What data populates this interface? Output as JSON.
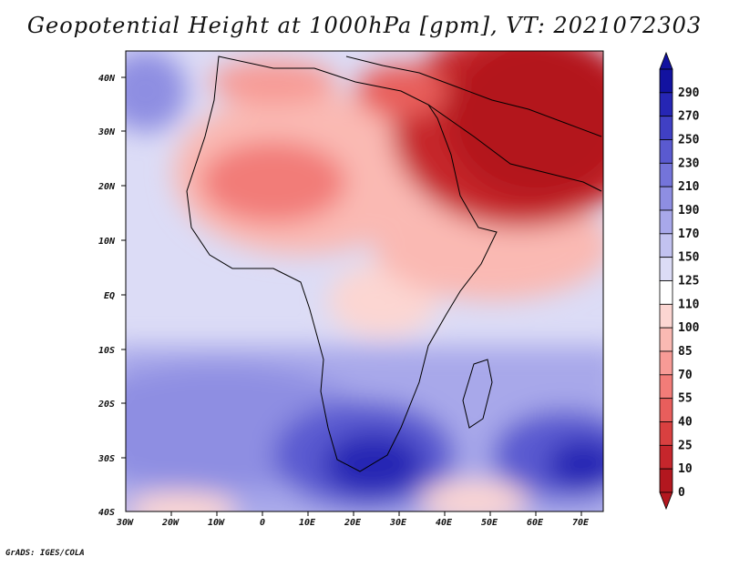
{
  "title": "Geopotential Height at 1000hPa [gpm], VT: 2021072303",
  "credit": "GrADS: IGES/COLA",
  "map": {
    "lat_labels": [
      "40N",
      "30N",
      "20N",
      "10N",
      "EQ",
      "10S",
      "20S",
      "30S",
      "40S"
    ],
    "lon_labels": [
      "30W",
      "20W",
      "10W",
      "0",
      "10E",
      "20E",
      "30E",
      "40E",
      "50E",
      "60E",
      "70E"
    ]
  },
  "colorbar": {
    "levels": [
      "0",
      "10",
      "25",
      "40",
      "55",
      "70",
      "85",
      "100",
      "110",
      "125",
      "150",
      "170",
      "190",
      "210",
      "230",
      "250",
      "270",
      "290"
    ],
    "colors": [
      "#b3171f",
      "#c6262c",
      "#d94040",
      "#e85e5c",
      "#f27c78",
      "#f79b96",
      "#fab9b3",
      "#fcd6d2",
      "#ffffff",
      "#dcdcf6",
      "#c2c2f0",
      "#a8a8ea",
      "#8e8ee2",
      "#7474da",
      "#5a5ad0",
      "#4040c4",
      "#2626b4",
      "#1212a0"
    ]
  }
}
